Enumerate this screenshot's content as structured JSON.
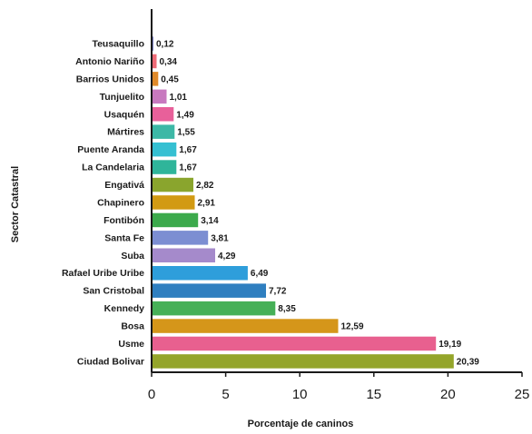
{
  "chart_data": {
    "type": "bar",
    "orientation": "horizontal",
    "title": "",
    "xlabel": "Porcentaje de caninos",
    "ylabel": "Sector Catastral",
    "xlim": [
      0,
      25
    ],
    "xticks": [
      "0",
      "5",
      "10",
      "15",
      "20",
      "25"
    ],
    "grid": false,
    "legend": "none",
    "categories": [
      "Teusaquillo",
      "Antonio Nariño",
      "Barrios Unidos",
      "Tunjuelito",
      "Usaquén",
      "Mártires",
      "Puente Aranda",
      "La Candelaria",
      "Engativá",
      "Chapinero",
      "Fontibón",
      "Santa Fe",
      "Suba",
      "Rafael Uribe Uribe",
      "San Cristobal",
      "Kennedy",
      "Bosa",
      "Usme",
      "Ciudad Bolivar"
    ],
    "values": [
      0.12,
      0.34,
      0.45,
      1.01,
      1.49,
      1.55,
      1.67,
      1.67,
      2.82,
      2.91,
      3.14,
      3.81,
      4.29,
      6.49,
      7.72,
      8.35,
      12.59,
      19.19,
      20.39
    ],
    "value_labels": [
      "0,12",
      "0,34",
      "0,45",
      "1,01",
      "1,49",
      "1,55",
      "1,67",
      "1,67",
      "2,82",
      "2,91",
      "3,14",
      "3,81",
      "4,29",
      "6,49",
      "7,72",
      "8,35",
      "12,59",
      "19,19",
      "20,39"
    ],
    "colors": [
      "#7B7FC4",
      "#EE6B77",
      "#E08A2A",
      "#C879BF",
      "#E8609A",
      "#3DB8A6",
      "#35C0D2",
      "#2FB59A",
      "#8AA52D",
      "#D29A12",
      "#3CAA4C",
      "#7C8ED2",
      "#A58ACB",
      "#2E9EDB",
      "#2F7FC0",
      "#46B057",
      "#D5961A",
      "#E8608F",
      "#94A52A"
    ]
  }
}
